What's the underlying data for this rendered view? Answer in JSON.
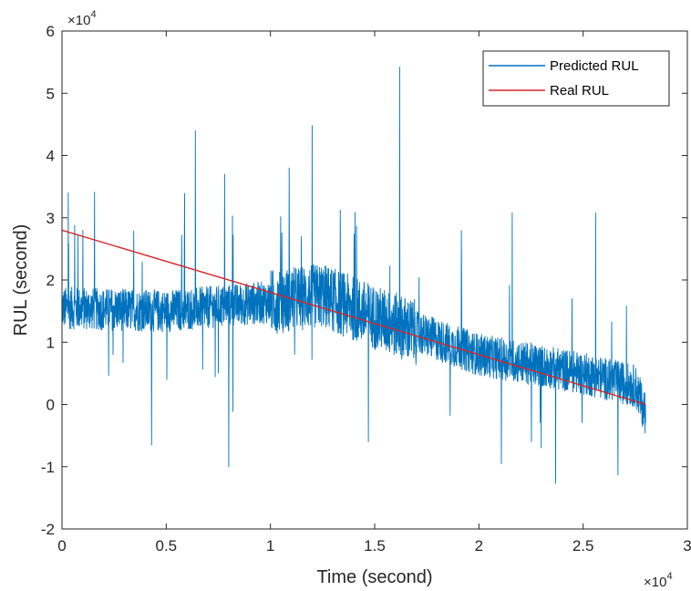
{
  "chart_data": {
    "type": "line",
    "title": "",
    "xlabel": "Time (second)",
    "ylabel": "RUL (second)",
    "x_multiplier_label": "×10",
    "x_multiplier_exp": "4",
    "y_multiplier_label": "×10",
    "y_multiplier_exp": "4",
    "xlim": [
      0,
      30000
    ],
    "ylim": [
      -20000,
      60000
    ],
    "x_ticks": [
      0,
      5000,
      10000,
      15000,
      20000,
      25000,
      30000
    ],
    "x_tick_labels": [
      "0",
      "0.5",
      "1",
      "1.5",
      "2",
      "2.5",
      "3"
    ],
    "y_ticks": [
      -20000,
      -10000,
      0,
      10000,
      20000,
      30000,
      40000,
      50000,
      60000
    ],
    "y_tick_labels": [
      "-2",
      "-1",
      "0",
      "1",
      "2",
      "3",
      "4",
      "5",
      "6"
    ],
    "grid": false,
    "legend_position": "top-right",
    "series": [
      {
        "name": "Predicted RUL",
        "color": "#0072BD",
        "note_values": "noisy signal approximated from the plot",
        "trend": [
          [
            0,
            15500
          ],
          [
            5000,
            15000
          ],
          [
            10000,
            16500
          ],
          [
            12500,
            17500
          ],
          [
            15000,
            14000
          ],
          [
            20000,
            8000
          ],
          [
            25000,
            5000
          ],
          [
            27500,
            3000
          ],
          [
            28000,
            -1500
          ]
        ],
        "spikes": [
          [
            300,
            34000
          ],
          [
            1000,
            28000
          ],
          [
            4300,
            -6500
          ],
          [
            6400,
            44000
          ],
          [
            7800,
            37000
          ],
          [
            8000,
            -10000
          ],
          [
            10900,
            38000
          ],
          [
            12000,
            44800
          ],
          [
            14700,
            -6000
          ],
          [
            16200,
            54200
          ],
          [
            21600,
            30800
          ],
          [
            25600,
            30800
          ]
        ]
      },
      {
        "name": "Real RUL",
        "color": "#D62728",
        "x": [
          0,
          28000
        ],
        "y": [
          28000,
          0
        ]
      }
    ]
  }
}
